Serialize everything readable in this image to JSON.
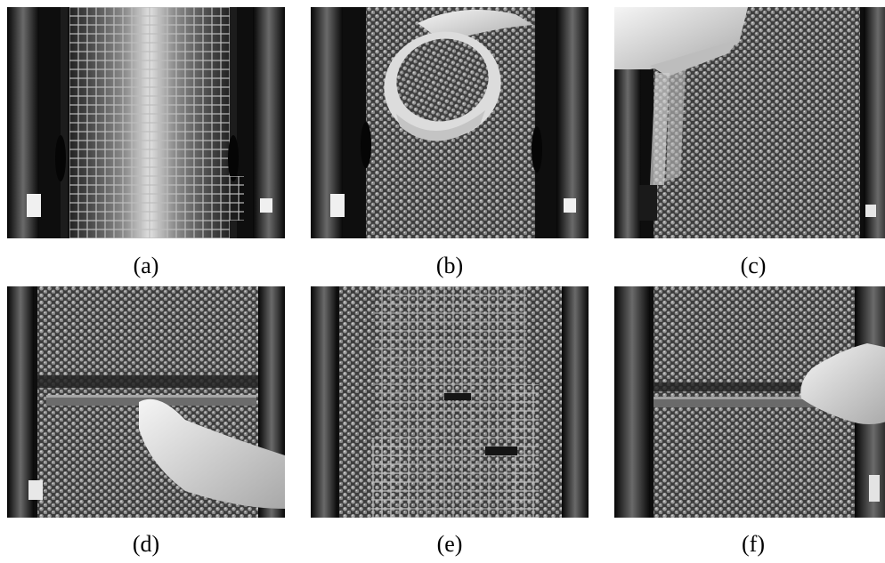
{
  "panels": [
    {
      "id": "a",
      "label": "(a)"
    },
    {
      "id": "b",
      "label": "(b)"
    },
    {
      "id": "c",
      "label": "(c)"
    },
    {
      "id": "d",
      "label": "(d)"
    },
    {
      "id": "e",
      "label": "(e)"
    },
    {
      "id": "f",
      "label": "(f)"
    }
  ],
  "colors": {
    "frame": "#0d0d0d",
    "bead": "#9a9a9a",
    "bead_dark": "#4a4a4a",
    "grid": "#c8c8c8",
    "glow": "#f2f2f2",
    "hand": "#e6e6e6"
  }
}
